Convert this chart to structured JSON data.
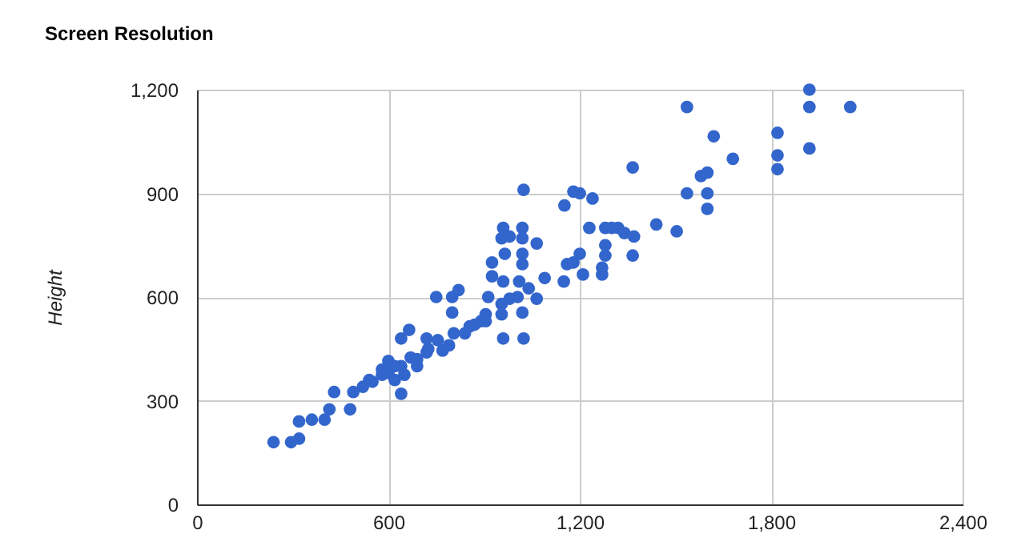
{
  "chart_data": {
    "type": "scatter",
    "title": "Screen Resolution",
    "ylabel": "Height",
    "x": [
      1920,
      1920,
      2048,
      1820,
      1820,
      1820,
      1920,
      1680,
      1620,
      1536,
      1600,
      1580,
      1536,
      1600,
      1600,
      1366,
      1440,
      1504,
      1024,
      1152,
      1180,
      1200,
      1240,
      1230,
      1280,
      1300,
      1320,
      1340,
      1370,
      1366,
      1280,
      1280,
      1270,
      1270,
      1210,
      1200,
      1180,
      1160,
      1150,
      960,
      1020,
      955,
      980,
      1020,
      1065,
      965,
      1020,
      1020,
      925,
      925,
      960,
      1010,
      1040,
      1090,
      1065,
      1005,
      980,
      955,
      955,
      1020,
      905,
      913,
      960,
      1024,
      750,
      800,
      820,
      800,
      640,
      665,
      720,
      755,
      805,
      855,
      890,
      905,
      770,
      720,
      670,
      640,
      580,
      550,
      520,
      490,
      430,
      480,
      640,
      620,
      690,
      600,
      415,
      400,
      360,
      320,
      320,
      295,
      240,
      540,
      580,
      600,
      620,
      650,
      690,
      725,
      790,
      840,
      870
    ],
    "values": [
      1200,
      1150,
      1150,
      1075,
      1010,
      970,
      1030,
      1000,
      1065,
      1150,
      960,
      950,
      900,
      900,
      855,
      975,
      810,
      790,
      910,
      865,
      905,
      900,
      885,
      800,
      800,
      800,
      800,
      785,
      775,
      720,
      750,
      720,
      685,
      665,
      665,
      725,
      700,
      695,
      645,
      800,
      800,
      770,
      775,
      770,
      755,
      725,
      725,
      695,
      700,
      660,
      645,
      645,
      625,
      655,
      595,
      600,
      595,
      580,
      550,
      555,
      530,
      600,
      480,
      480,
      600,
      600,
      620,
      555,
      480,
      505,
      480,
      475,
      495,
      515,
      530,
      550,
      445,
      440,
      425,
      400,
      375,
      355,
      340,
      325,
      325,
      275,
      320,
      360,
      400,
      415,
      275,
      245,
      245,
      240,
      190,
      180,
      180,
      360,
      390,
      380,
      400,
      375,
      420,
      450,
      460,
      495,
      520
    ],
    "color": "#3366cc",
    "xlim": [
      0,
      2400
    ],
    "xticks": [
      0,
      600,
      {
        "value": 1200,
        "label": "1,200"
      },
      {
        "value": 1800,
        "label": "1,800"
      },
      {
        "value": 2400,
        "label": "2,400"
      }
    ],
    "ylim": [
      0,
      1200
    ],
    "yticks": [
      0,
      300,
      600,
      900,
      {
        "value": 1200,
        "label": "1,200"
      }
    ],
    "grid": true
  }
}
